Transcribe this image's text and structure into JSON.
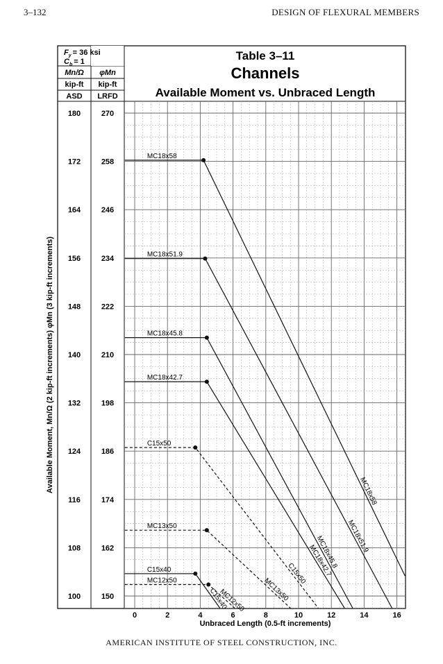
{
  "page": {
    "number": "3–132",
    "running_head": "DESIGN OF FLEXURAL MEMBERS",
    "footer": "AMERICAN INSTITUTE OF STEEL CONSTRUCTION, INC."
  },
  "table": {
    "number": "Table 3–11",
    "title": "Channels",
    "subtitle": "Available Moment vs. Unbraced Length"
  },
  "header_box": {
    "fy": "F",
    "fy_sub": "y",
    "fy_value": "= 36 ksi",
    "cb": "C",
    "cb_sub": "b",
    "cb_value": "= 1",
    "col1_head": "Mn/Ω",
    "col2_head": "φMn",
    "col1_unit": "kip-ft",
    "col2_unit": "kip-ft",
    "col1_method": "ASD",
    "col2_method": "LRFD"
  },
  "chart_data": {
    "type": "line",
    "xlabel": "Unbraced Length (0.5-ft increments)",
    "ylabel": "Available Moment, Mn/Ω (2 kip-ft increments) φMn (3 kip-ft increments)",
    "xlim": [
      0,
      16.5
    ],
    "ylim": [
      98,
      182
    ],
    "x_ticks": [
      "0",
      "2",
      "4",
      "6",
      "8",
      "10",
      "12",
      "14",
      "16"
    ],
    "y_asd_ticks": [
      "180",
      "172",
      "164",
      "156",
      "148",
      "140",
      "132",
      "124",
      "116",
      "108",
      "100"
    ],
    "y_lrfd_ticks": [
      "270",
      "258",
      "246",
      "234",
      "222",
      "210",
      "198",
      "186",
      "174",
      "162",
      "150"
    ],
    "grid": true,
    "series": [
      {
        "name": "MC18x58",
        "style": "solid",
        "x": [
          -0.6,
          4.2,
          16.5
        ],
        "y": [
          172.2,
          172.2,
          103.3
        ]
      },
      {
        "name": "MC18x51.9",
        "style": "solid",
        "x": [
          -0.6,
          4.3,
          15.7
        ],
        "y": [
          155.9,
          155.9,
          98.0
        ]
      },
      {
        "name": "MC18x45.8",
        "style": "solid",
        "x": [
          -0.6,
          4.4,
          13.3
        ],
        "y": [
          142.8,
          142.8,
          98.0
        ]
      },
      {
        "name": "MC18x42.7",
        "style": "solid",
        "x": [
          -0.6,
          4.4,
          12.8
        ],
        "y": [
          135.5,
          135.5,
          98.0
        ]
      },
      {
        "name": "C15x50",
        "style": "dashed",
        "x": [
          -0.6,
          3.7,
          11.2
        ],
        "y": [
          124.6,
          124.6,
          98.0
        ]
      },
      {
        "name": "MC13x50",
        "style": "dashed",
        "x": [
          -0.6,
          4.4,
          9.5
        ],
        "y": [
          110.9,
          110.9,
          98.0
        ]
      },
      {
        "name": "C15x40",
        "style": "solid",
        "x": [
          -0.6,
          3.7,
          5.2
        ],
        "y": [
          103.7,
          103.7,
          98.0
        ]
      },
      {
        "name": "MC12x50",
        "style": "dashed",
        "x": [
          -0.6,
          4.5,
          6.1
        ],
        "y": [
          101.9,
          101.9,
          98.0
        ]
      }
    ]
  }
}
